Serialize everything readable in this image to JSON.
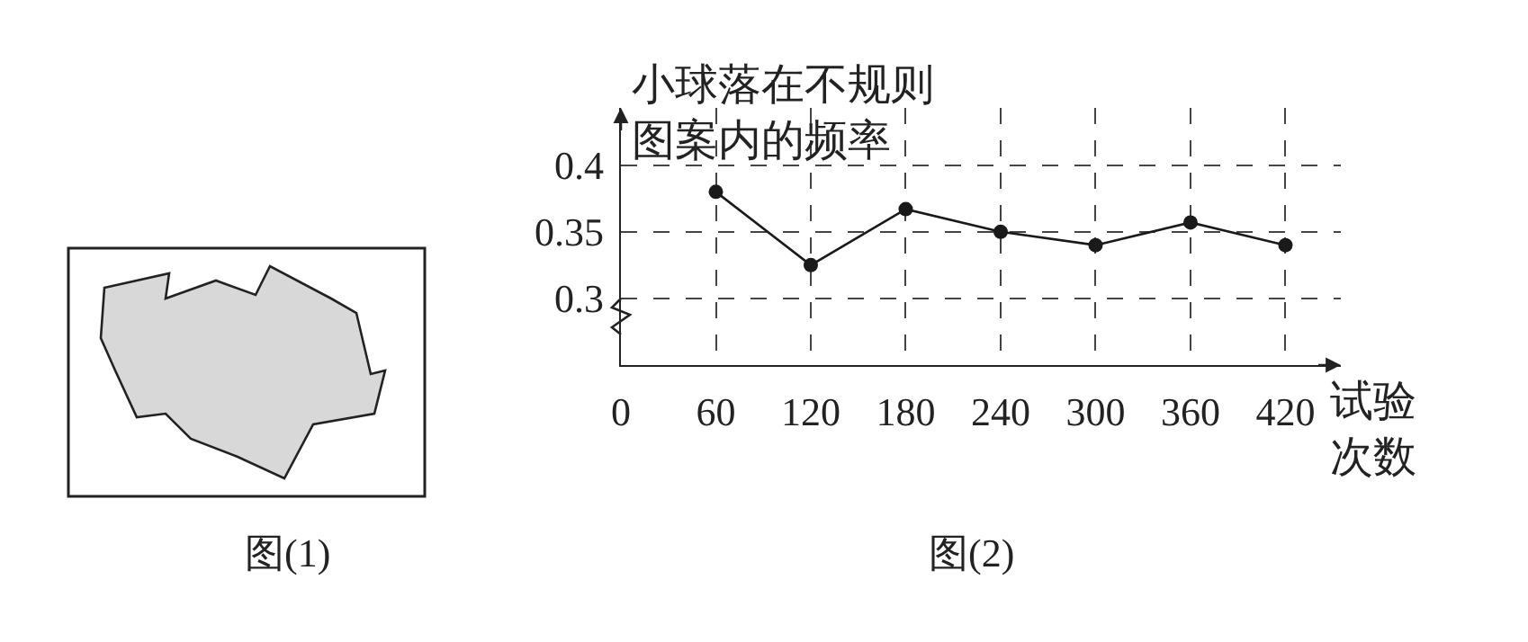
{
  "chart_data": {
    "type": "line",
    "xlabel": "试验次数",
    "ylabel": "小球落在不规则图案内的频率",
    "x": [
      60,
      120,
      180,
      240,
      300,
      360,
      420
    ],
    "series": [
      {
        "color": "#1a1a1a",
        "values": [
          0.38,
          0.325,
          0.367,
          0.35,
          0.34,
          0.357,
          0.34
        ]
      }
    ],
    "xlim": [
      0,
      455
    ],
    "xticks": [
      0,
      60,
      120,
      180,
      240,
      300,
      360,
      420
    ],
    "ylim": [
      0.25,
      0.443
    ],
    "yticks": [
      0.3,
      0.35,
      0.4
    ],
    "grid": true,
    "marker": "circle",
    "line_style": "solid",
    "annotations": [
      "图(1)",
      "图(2)"
    ]
  }
}
